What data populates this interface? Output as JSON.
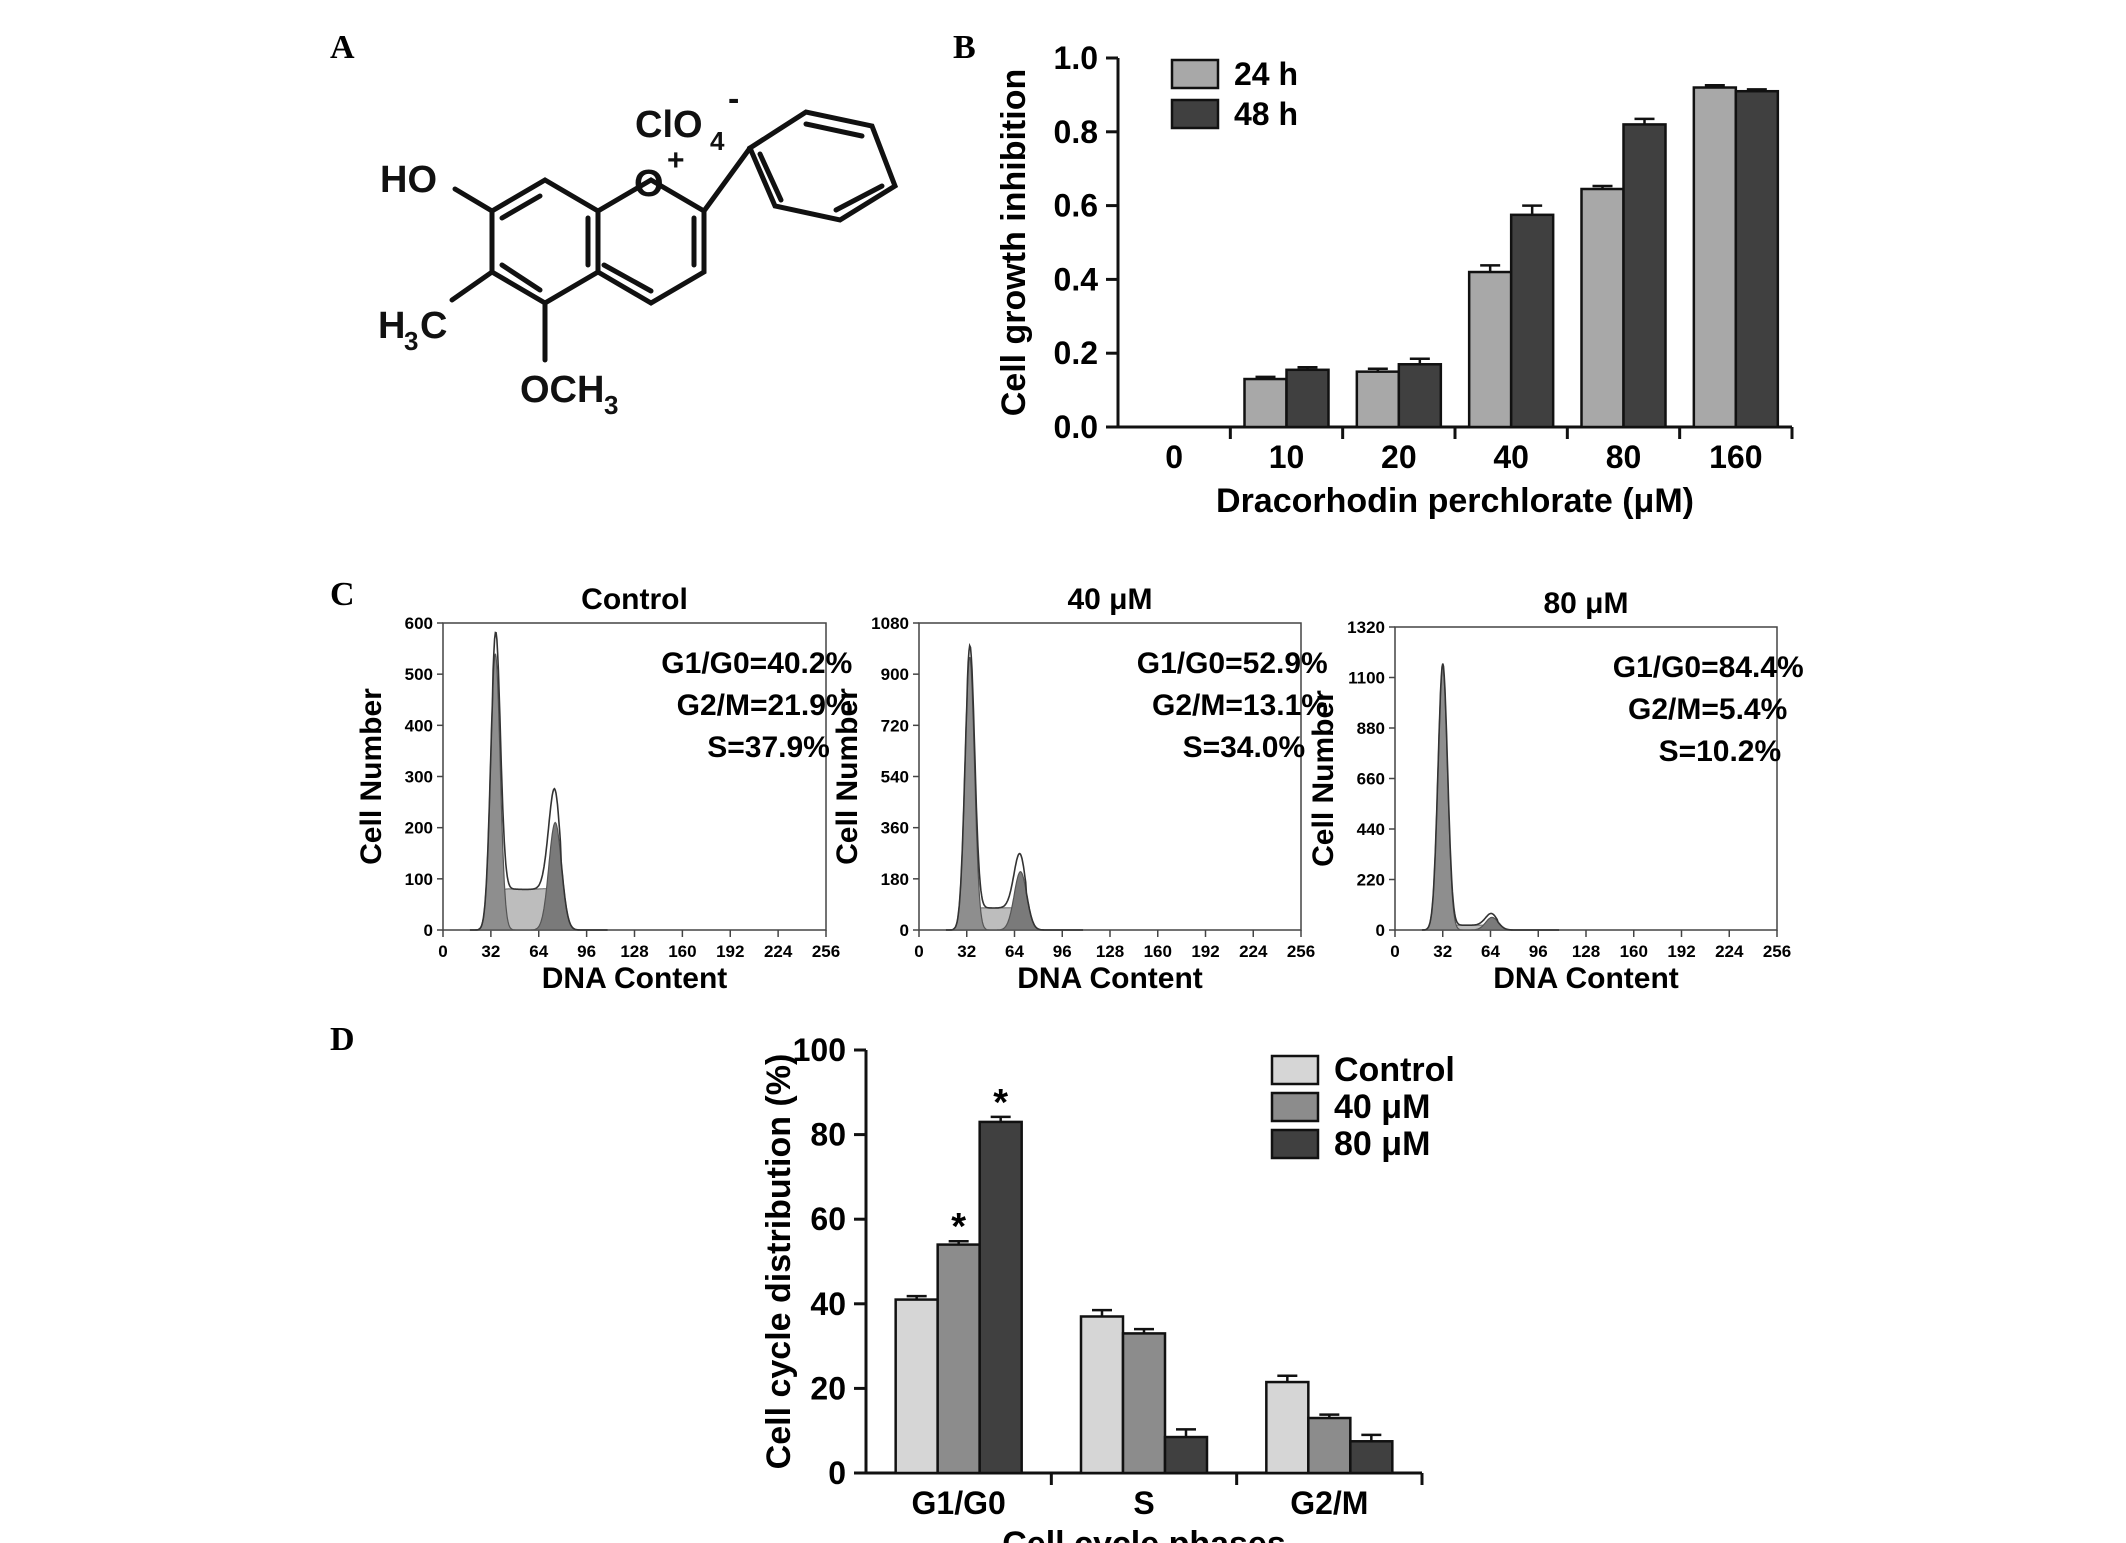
{
  "panels": {
    "A": {
      "letter": "A",
      "labels": {
        "ho": "HO",
        "clo4": "ClO",
        "clo4_sub": "4",
        "clo4_charge": "-",
        "o_plus": "O",
        "plus": "+",
        "h3c": "H",
        "h3c_sub": "3",
        "h3c_c": "C",
        "och3": "OCH",
        "och3_sub": "3"
      }
    },
    "B": {
      "letter": "B"
    },
    "C": {
      "letter": "C"
    },
    "D": {
      "letter": "D"
    }
  },
  "chart_data": [
    {
      "id": "B",
      "type": "bar",
      "title": "",
      "xlabel": "Dracorhodin perchlorate (μM)",
      "ylabel": "Cell growth inhibition",
      "categories": [
        "0",
        "10",
        "20",
        "40",
        "80",
        "160"
      ],
      "ylim": [
        0,
        1.0
      ],
      "yticks": [
        "0.0",
        "0.2",
        "0.4",
        "0.6",
        "0.8",
        "1.0"
      ],
      "legend_position": "top-left",
      "series": [
        {
          "name": "24 h",
          "color": "#a8a8a8",
          "values": [
            0,
            0.13,
            0.15,
            0.42,
            0.645,
            0.92
          ],
          "errors": [
            0,
            0.006,
            0.008,
            0.018,
            0.008,
            0.006
          ]
        },
        {
          "name": "48 h",
          "color": "#404040",
          "values": [
            0,
            0.155,
            0.17,
            0.575,
            0.82,
            0.91
          ],
          "errors": [
            0,
            0.007,
            0.015,
            0.025,
            0.015,
            0.005
          ]
        }
      ]
    },
    {
      "id": "C1",
      "type": "area",
      "title": "Control",
      "xlabel": "DNA Content",
      "ylabel": "Cell Number",
      "xlim": [
        0,
        256
      ],
      "ylim": [
        0,
        600
      ],
      "xticks": [
        "0",
        "32",
        "64",
        "96",
        "128",
        "160",
        "192",
        "224",
        "256"
      ],
      "yticks": [
        "0",
        "100",
        "200",
        "300",
        "400",
        "500",
        "600"
      ],
      "annotations": [
        "G1/G0=40.2%",
        "G2/M=21.9%",
        "S=37.9%"
      ],
      "g1_peak": [
        35,
        540
      ],
      "g2_peak": [
        75,
        210
      ]
    },
    {
      "id": "C2",
      "type": "area",
      "title": "40 μM",
      "xlabel": "DNA Content",
      "ylabel": "Cell Number",
      "xlim": [
        0,
        256
      ],
      "ylim": [
        0,
        1080
      ],
      "xticks": [
        "0",
        "32",
        "64",
        "96",
        "128",
        "160",
        "192",
        "224",
        "256"
      ],
      "yticks": [
        "0",
        "180",
        "360",
        "540",
        "720",
        "900",
        "1080"
      ],
      "annotations": [
        "G1/G0=52.9%",
        "G2/M=13.1%",
        "S=34.0%"
      ],
      "g1_peak": [
        34,
        960
      ],
      "g2_peak": [
        68,
        205
      ]
    },
    {
      "id": "C3",
      "type": "area",
      "title": "80 μM",
      "xlabel": "DNA Content",
      "ylabel": "Cell Number",
      "xlim": [
        0,
        256
      ],
      "ylim": [
        0,
        1320
      ],
      "xticks": [
        "0",
        "32",
        "64",
        "96",
        "128",
        "160",
        "192",
        "224",
        "256"
      ],
      "yticks": [
        "0",
        "220",
        "440",
        "660",
        "880",
        "1100",
        "1320"
      ],
      "annotations": [
        "G1/G0=84.4%",
        "G2/M=5.4%",
        "S=10.2%"
      ],
      "g1_peak": [
        32,
        1150
      ],
      "g2_peak": [
        65,
        55
      ]
    },
    {
      "id": "D",
      "type": "bar",
      "title": "",
      "xlabel": "Cell cycle phases",
      "ylabel": "Cell cycle distribution (%)",
      "categories": [
        "G1/G0",
        "S",
        "G2/M"
      ],
      "ylim": [
        0,
        100
      ],
      "yticks": [
        "0",
        "20",
        "40",
        "60",
        "80",
        "100"
      ],
      "legend_position": "top-right",
      "series": [
        {
          "name": "Control",
          "color": "#d6d6d6",
          "values": [
            41,
            37,
            21.5
          ],
          "errors": [
            0.8,
            1.5,
            1.5
          ],
          "sig": [
            false,
            false,
            false
          ]
        },
        {
          "name": "40 μM",
          "color": "#8c8c8c",
          "values": [
            54,
            33,
            13
          ],
          "errors": [
            0.8,
            1.0,
            0.8
          ],
          "sig": [
            true,
            false,
            false
          ]
        },
        {
          "name": "80 μM",
          "color": "#404040",
          "values": [
            83,
            8.5,
            7.5
          ],
          "errors": [
            1.2,
            1.8,
            1.5
          ],
          "sig": [
            true,
            false,
            false
          ]
        }
      ],
      "sig_marker": "*"
    }
  ]
}
